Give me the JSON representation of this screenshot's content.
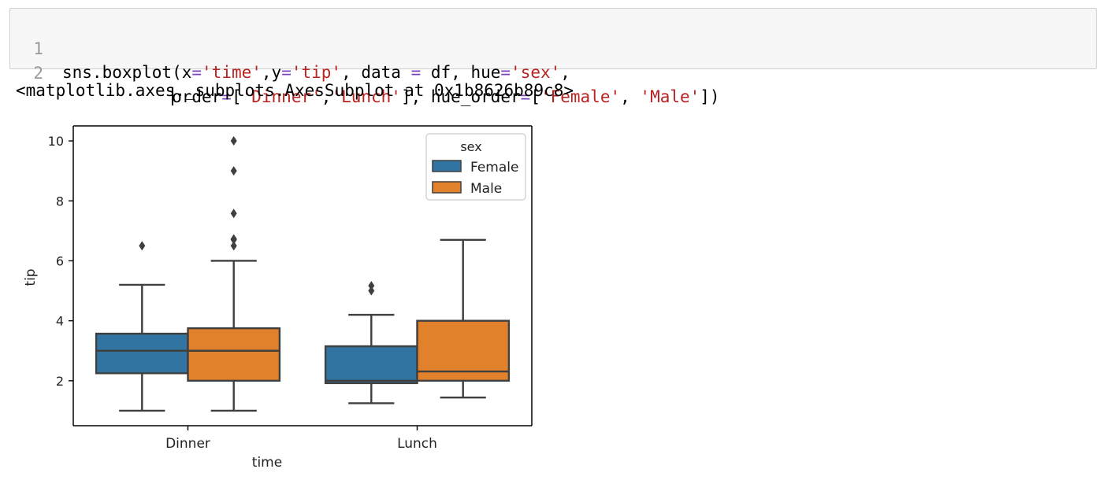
{
  "code_cell": {
    "lines": [
      {
        "number": "1",
        "tokens": [
          {
            "text": "sns.boxplot(x",
            "type": "plain"
          },
          {
            "text": "=",
            "type": "op"
          },
          {
            "text": "'time'",
            "type": "str"
          },
          {
            "text": ",y",
            "type": "plain"
          },
          {
            "text": "=",
            "type": "op"
          },
          {
            "text": "'tip'",
            "type": "str"
          },
          {
            "text": ", data ",
            "type": "plain"
          },
          {
            "text": "=",
            "type": "op"
          },
          {
            "text": " df, hue",
            "type": "plain"
          },
          {
            "text": "=",
            "type": "op"
          },
          {
            "text": "'sex'",
            "type": "str"
          },
          {
            "text": ",",
            "type": "plain"
          }
        ]
      },
      {
        "number": "2",
        "tokens": [
          {
            "text": "           ",
            "type": "plain"
          },
          {
            "text": "|",
            "type": "cursor"
          },
          {
            "text": "order",
            "type": "plain"
          },
          {
            "text": "=",
            "type": "op"
          },
          {
            "text": "[",
            "type": "plain"
          },
          {
            "text": "'Dinner'",
            "type": "str"
          },
          {
            "text": ",",
            "type": "plain"
          },
          {
            "text": "'Lunch'",
            "type": "str"
          },
          {
            "text": "], hue_order",
            "type": "plain"
          },
          {
            "text": "=",
            "type": "op"
          },
          {
            "text": "[",
            "type": "plain"
          },
          {
            "text": "'Female'",
            "type": "str"
          },
          {
            "text": ", ",
            "type": "plain"
          },
          {
            "text": "'Male'",
            "type": "str"
          },
          {
            "text": "])",
            "type": "plain"
          }
        ]
      }
    ]
  },
  "output": {
    "text": "<matplotlib.axes._subplots.AxesSubplot at 0x1b8626b89c8>"
  },
  "chart_data": {
    "type": "boxplot",
    "xlabel": "time",
    "ylabel": "tip",
    "categories": [
      "Dinner",
      "Lunch"
    ],
    "ylim": [
      0.5,
      10.5
    ],
    "yticks": [
      2,
      4,
      6,
      8,
      10
    ],
    "grid": false,
    "legend": {
      "title": "sex",
      "placement": "upper right"
    },
    "series": [
      {
        "name": "Female",
        "color": "#3274a1",
        "boxes": [
          {
            "category": "Dinner",
            "whisker_low": 1.0,
            "q1": 2.25,
            "median": 3.0,
            "q3": 3.57,
            "whisker_high": 5.2,
            "outliers": [
              6.5
            ]
          },
          {
            "category": "Lunch",
            "whisker_low": 1.25,
            "q1": 1.92,
            "median": 2.0,
            "q3": 3.15,
            "whisker_high": 4.2,
            "outliers": [
              5.0,
              5.17
            ]
          }
        ]
      },
      {
        "name": "Male",
        "color": "#e1812c",
        "boxes": [
          {
            "category": "Dinner",
            "whisker_low": 1.0,
            "q1": 2.0,
            "median": 3.0,
            "q3": 3.75,
            "whisker_high": 6.0,
            "outliers": [
              6.5,
              6.7,
              6.73,
              7.58,
              9.0,
              10.0
            ]
          },
          {
            "category": "Lunch",
            "whisker_low": 1.44,
            "q1": 2.0,
            "median": 2.31,
            "q3": 4.0,
            "whisker_high": 6.7,
            "outliers": []
          }
        ]
      }
    ]
  }
}
